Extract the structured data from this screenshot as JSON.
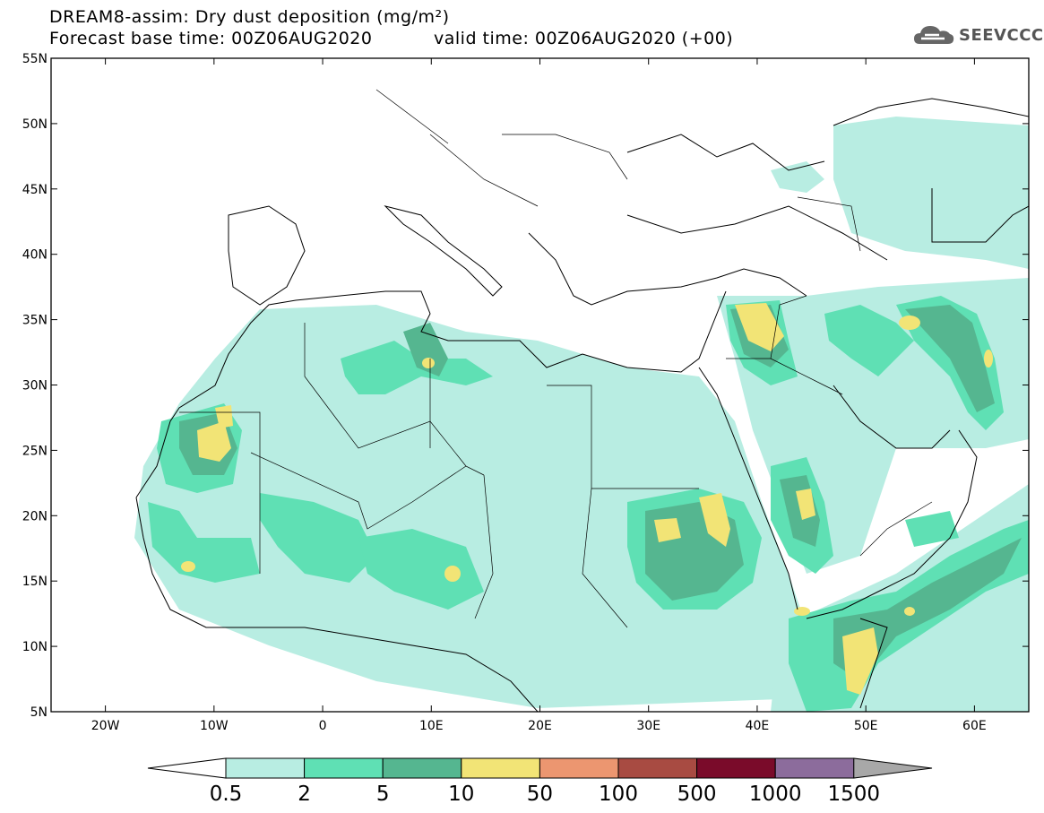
{
  "header": {
    "title": "DREAM8-assim: Dry dust deposition (mg/m²)",
    "base_time": "Forecast base time: 00Z06AUG2020",
    "valid_time": "valid time: 00Z06AUG2020 (+00)"
  },
  "logo": {
    "text": "SEEVCCC",
    "icon": "cloud-icon"
  },
  "map": {
    "lon_range": [
      -25,
      65
    ],
    "lat_range": [
      5,
      55
    ],
    "lat_ticks": [
      {
        "value": 55,
        "label": "55N"
      },
      {
        "value": 50,
        "label": "50N"
      },
      {
        "value": 45,
        "label": "45N"
      },
      {
        "value": 40,
        "label": "40N"
      },
      {
        "value": 35,
        "label": "35N"
      },
      {
        "value": 30,
        "label": "30N"
      },
      {
        "value": 25,
        "label": "25N"
      },
      {
        "value": 20,
        "label": "20N"
      },
      {
        "value": 15,
        "label": "15N"
      },
      {
        "value": 10,
        "label": "10N"
      },
      {
        "value": 5,
        "label": "5N"
      }
    ],
    "lon_ticks": [
      {
        "value": -20,
        "label": "20W"
      },
      {
        "value": -10,
        "label": "10W"
      },
      {
        "value": 0,
        "label": "0"
      },
      {
        "value": 10,
        "label": "10E"
      },
      {
        "value": 20,
        "label": "20E"
      },
      {
        "value": 30,
        "label": "30E"
      },
      {
        "value": 40,
        "label": "40E"
      },
      {
        "value": 50,
        "label": "50E"
      },
      {
        "value": 60,
        "label": "60E"
      }
    ]
  },
  "colorbar": {
    "colors": [
      "#b8ede2",
      "#5fe0b4",
      "#55b690",
      "#f2e476",
      "#ec9670",
      "#a84b42",
      "#7a0b2a",
      "#8c6c9c"
    ],
    "under_color": "#ffffff",
    "over_color": "#a8a8a8",
    "labels": [
      "0.5",
      "2",
      "5",
      "10",
      "50",
      "100",
      "500",
      "1000",
      "1500"
    ]
  }
}
